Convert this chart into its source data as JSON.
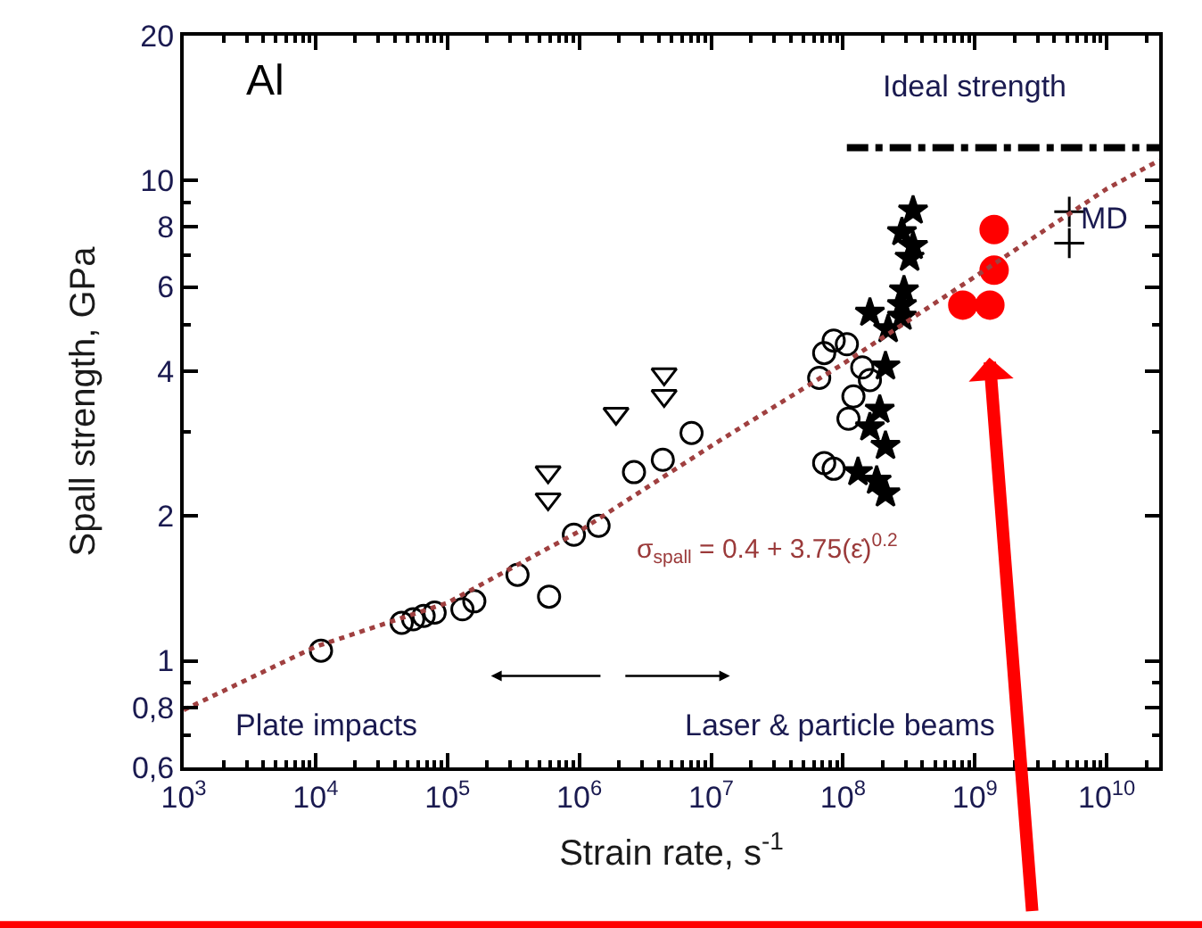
{
  "chart_data": {
    "type": "scatter",
    "xlabel": "Strain rate, s$^{-1}$",
    "ylabel": "Spall strength, GPa",
    "log": "xy",
    "xlim": [
      1000,
      25000000000
    ],
    "ylim": [
      0.6,
      20
    ],
    "xticks": [
      {
        "value": 1000,
        "label": "10$^{3}$"
      },
      {
        "value": 10000,
        "label": "10$^{4}$"
      },
      {
        "value": 100000,
        "label": "10$^{5}$"
      },
      {
        "value": 1000000,
        "label": "10$^{6}$"
      },
      {
        "value": 10000000,
        "label": "10$^{7}$"
      },
      {
        "value": 100000000,
        "label": "10$^{8}$"
      },
      {
        "value": 1000000000,
        "label": "10$^{9}$"
      },
      {
        "value": 10000000000,
        "label": "10$^{10}$"
      }
    ],
    "yticks": [
      {
        "value": 0.6,
        "label": "0,6"
      },
      {
        "value": 0.8,
        "label": "0,8"
      },
      1,
      2,
      4,
      6,
      8,
      10,
      20
    ],
    "series": [
      {
        "marker": "circle",
        "color": "#000000",
        "x": [
          11000,
          45000,
          55000,
          66000,
          80000,
          130000,
          160000,
          340000,
          590000,
          1400000,
          85000000,
          107000000,
          72000000,
          140000000,
          160000000,
          120000000,
          110000000,
          72000000,
          85000000
        ],
        "values": [
          1.05,
          1.2,
          1.22,
          1.24,
          1.26,
          1.28,
          1.33,
          1.51,
          1.36,
          1.91,
          4.64,
          4.56,
          4.37,
          4.08,
          3.84,
          3.55,
          3.19,
          2.58,
          2.51
        ]
      },
      {
        "marker": "circle",
        "color": "#000000",
        "x": [
          910000,
          2600000,
          4300000,
          7100000,
          66000000
        ],
        "values": [
          1.83,
          2.47,
          2.62,
          2.98,
          3.88
        ]
      },
      {
        "marker": "triangle",
        "color": "#000000",
        "x": [
          580000,
          580000,
          1900000,
          4400000,
          4400000
        ],
        "values": [
          2.47,
          2.17,
          3.27,
          3.95,
          3.56
        ]
      },
      {
        "marker": "star",
        "color": "#000000",
        "x": [
          340000000,
          340000000,
          320000000,
          290000000,
          280000000,
          280000000,
          220000000,
          210000000,
          190000000,
          210000000,
          180000000,
          210000000,
          160000000,
          280000000,
          160000000,
          130000000
        ],
        "values": [
          8.65,
          7.3,
          6.9,
          5.9,
          5.5,
          5.2,
          4.9,
          4.1,
          3.33,
          2.8,
          2.37,
          2.23,
          5.3,
          7.8,
          3.06,
          2.47
        ]
      },
      {
        "marker": "circle",
        "color": "#ff0000",
        "x": [
          810000000,
          1300000000,
          1400000000,
          1400000000
        ],
        "values": [
          5.5,
          5.5,
          6.5,
          7.9
        ]
      },
      {
        "marker": "cross",
        "color": "#000000",
        "x": [
          5200000000,
          5200000000
        ],
        "values": [
          8.6,
          7.4
        ]
      },
      {
        "type": "line",
        "line_style": "dashed",
        "color": "#000000",
        "x": [
          107000000,
          25000000000
        ],
        "values": [
          11.7,
          11.7
        ]
      },
      {
        "type": "line",
        "line_style": "dotted",
        "color": "#a04040",
        "x": [
          1000,
          10000,
          100000,
          1000000,
          10000000,
          100000000,
          1000000000,
          10000000000,
          25000000000
        ],
        "values": [
          0.79,
          1.07,
          1.32,
          1.86,
          2.8,
          4.15,
          6.3,
          9.6,
          11
        ]
      }
    ],
    "annotations": [
      "Al",
      "σ$_{spall}$ = 0.4 + 3.75(ε̇)$^{0.2}$",
      "Plate impacts",
      "Laser & particle beams",
      "Ideal strength",
      "MD"
    ]
  }
}
